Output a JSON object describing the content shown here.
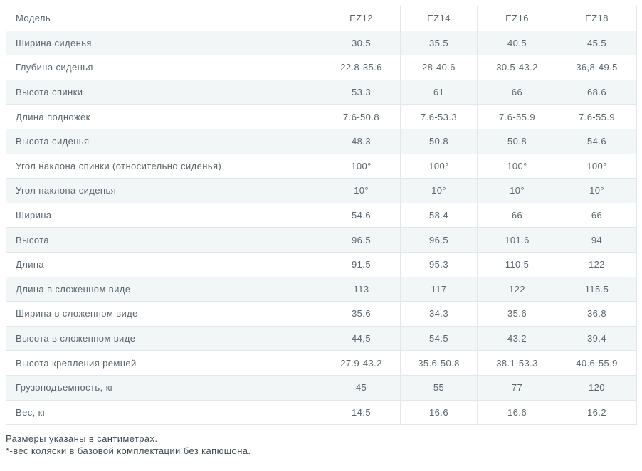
{
  "colors": {
    "stripe_row_bg": "#f2f6f7",
    "table_border": "#e2e7e9",
    "cell_text": "#5b656e",
    "footnote_text": "#3e484f"
  },
  "table": {
    "header": {
      "label": "Модель",
      "models": [
        "EZ12",
        "EZ14",
        "EZ16",
        "EZ18"
      ]
    },
    "rows": [
      {
        "label": "Ширина сиденья",
        "values": [
          "30.5",
          "35.5",
          "40.5",
          "45.5"
        ]
      },
      {
        "label": "Глубина сиденья",
        "values": [
          "22.8-35.6",
          "28-40.6",
          "30.5-43.2",
          "36,8-49.5"
        ]
      },
      {
        "label": "Высота спинки",
        "values": [
          "53.3",
          "61",
          "66",
          "68.6"
        ]
      },
      {
        "label": "Длина подножек",
        "values": [
          "7.6-50.8",
          "7.6-53.3",
          "7.6-55.9",
          "7.6-55.9"
        ]
      },
      {
        "label": "Высота сиденья",
        "values": [
          "48.3",
          "50.8",
          "50.8",
          "54.6"
        ]
      },
      {
        "label": "Угол наклона спинки (относительно сиденья)",
        "values": [
          "100°",
          "100°",
          "100°",
          "100°"
        ]
      },
      {
        "label": "Угол наклона сиденья",
        "values": [
          "10°",
          "10°",
          "10°",
          "10°"
        ]
      },
      {
        "label": "Ширина",
        "values": [
          "54.6",
          "58.4",
          "66",
          "66"
        ]
      },
      {
        "label": "Высота",
        "values": [
          "96.5",
          "96.5",
          "101.6",
          "94"
        ]
      },
      {
        "label": "Длина",
        "values": [
          "91.5",
          "95.3",
          "110.5",
          "122"
        ]
      },
      {
        "label": "Длина в сложенном виде",
        "values": [
          "113",
          "117",
          "122",
          "115.5"
        ]
      },
      {
        "label": "Ширина в сложенном виде",
        "values": [
          "35.6",
          "34.3",
          "35.6",
          "36.8"
        ]
      },
      {
        "label": "Высота в сложенном виде",
        "values": [
          "44,5",
          "54.5",
          "43.2",
          "39.4"
        ]
      },
      {
        "label": "Высота крепления ремней",
        "values": [
          "27.9-43.2",
          "35.6-50.8",
          "38.1-53.3",
          "40.6-55.9"
        ]
      },
      {
        "label": "Грузоподъемность, кг",
        "values": [
          "45",
          "55",
          "77",
          "120"
        ]
      },
      {
        "label": "Вес, кг",
        "values": [
          "14.5",
          "16.6",
          "16.6",
          "16.2"
        ]
      }
    ]
  },
  "footer": {
    "line1": "Размеры указаны в сантиметрах.",
    "line2": "*-вес коляски в базовой комплектации без капюшона."
  }
}
